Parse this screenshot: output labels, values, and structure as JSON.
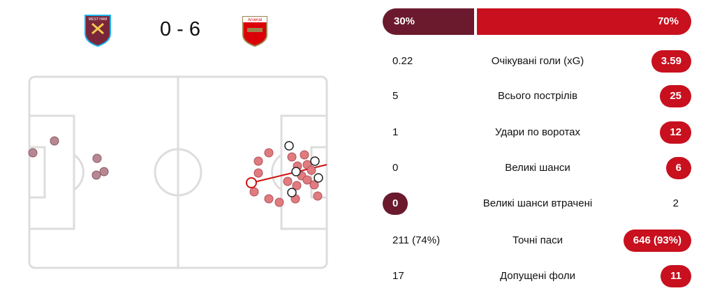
{
  "match": {
    "score": "0 - 6",
    "home_badge": "WEST HAM",
    "away_badge": "Arsenal"
  },
  "possession": {
    "home": "30%",
    "away": "70%"
  },
  "stats": [
    {
      "home": "0.22",
      "label": "Очікувані голи (xG)",
      "away": "3.59",
      "highlight": "away"
    },
    {
      "home": "5",
      "label": "Всього пострілів",
      "away": "25",
      "highlight": "away"
    },
    {
      "home": "1",
      "label": "Удари по воротах",
      "away": "12",
      "highlight": "away"
    },
    {
      "home": "0",
      "label": "Великі шанси",
      "away": "6",
      "highlight": "away"
    },
    {
      "home": "0",
      "label": "Великі шанси втрачені",
      "away": "2",
      "highlight": "home"
    },
    {
      "home": "211 (74%)",
      "label": "Точні паси",
      "away": "646 (93%)",
      "highlight": "away"
    },
    {
      "home": "17",
      "label": "Допущені фоли",
      "away": "11",
      "highlight": "away"
    }
  ]
}
